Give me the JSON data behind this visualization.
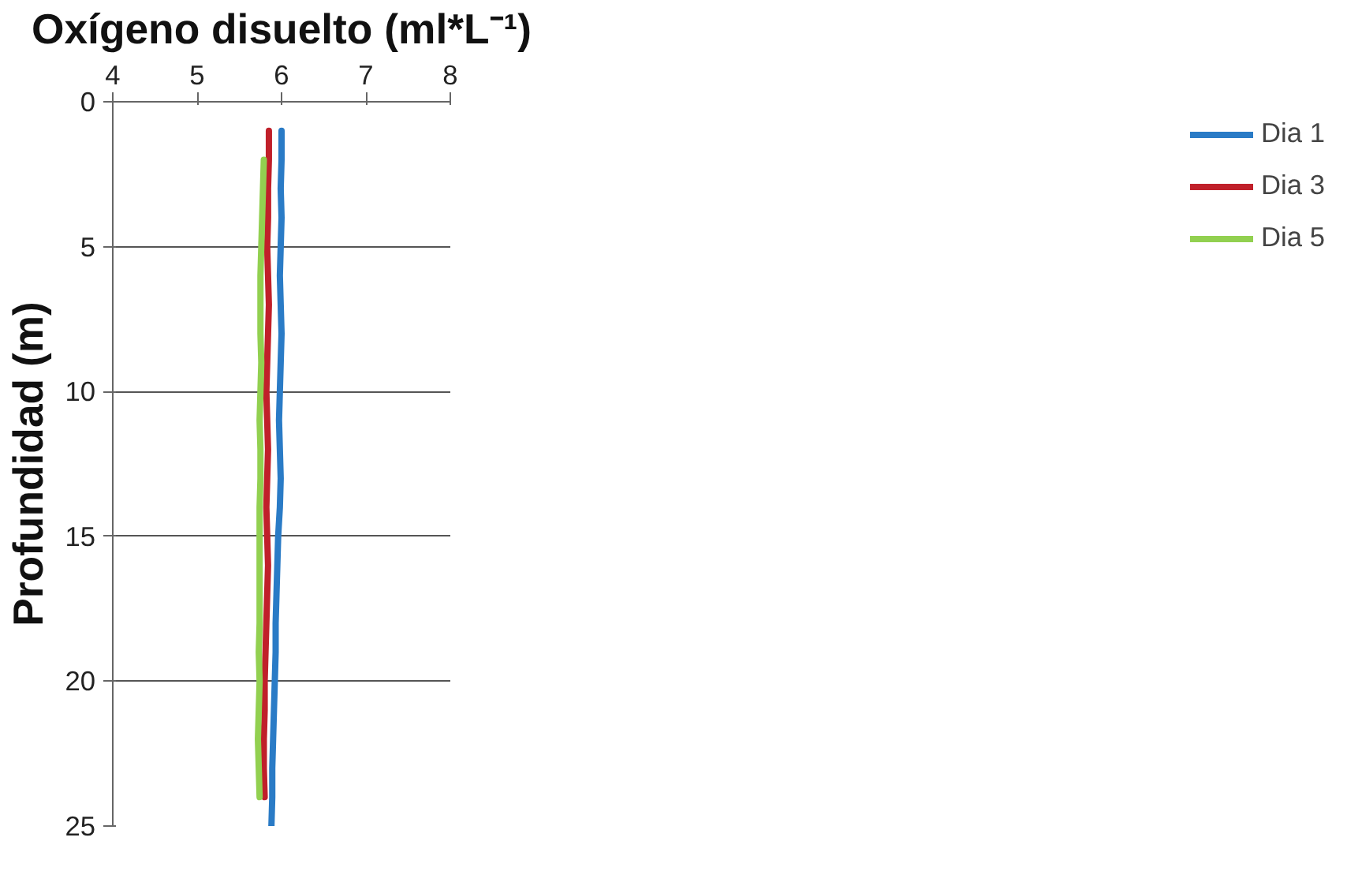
{
  "chart_data": {
    "type": "line",
    "xlabel": "Oxígeno disuelto (ml*L⁻¹)",
    "ylabel": "Profundidad (m)",
    "xlim": [
      4,
      8
    ],
    "xticks": [
      4,
      5,
      6,
      7,
      8
    ],
    "ylim": [
      25,
      0
    ],
    "yticks": [
      0,
      5,
      10,
      15,
      20,
      25
    ],
    "grid": "y",
    "legend": "right",
    "line_style": "solid",
    "marker": "none",
    "series": [
      {
        "name": "Dia 1",
        "color": "#2a7bc6",
        "x": [
          6.0,
          6.0,
          5.99,
          6.0,
          5.99,
          5.98,
          5.99,
          6.0,
          5.99,
          5.98,
          5.97,
          5.98,
          5.99,
          5.98,
          5.96,
          5.95,
          5.94,
          5.93,
          5.93,
          5.92,
          5.91,
          5.9,
          5.89,
          5.89,
          5.88
        ],
        "values": [
          1,
          2,
          3,
          4,
          5,
          6,
          7,
          8,
          9,
          10,
          11,
          12,
          13,
          14,
          15,
          16,
          17,
          18,
          19,
          20,
          21,
          22,
          23,
          24,
          25
        ]
      },
      {
        "name": "Dia 3",
        "color": "#c0202a",
        "x": [
          5.85,
          5.85,
          5.84,
          5.84,
          5.83,
          5.84,
          5.85,
          5.84,
          5.83,
          5.82,
          5.83,
          5.84,
          5.83,
          5.82,
          5.83,
          5.84,
          5.83,
          5.82,
          5.81,
          5.8,
          5.8,
          5.79,
          5.79,
          5.8
        ],
        "values": [
          1,
          2,
          3,
          4,
          5,
          6,
          7,
          8,
          9,
          10,
          11,
          12,
          13,
          14,
          15,
          16,
          17,
          18,
          19,
          20,
          21,
          22,
          23,
          24
        ]
      },
      {
        "name": "Dia 5",
        "color": "#92d050",
        "x": [
          5.79,
          5.78,
          5.77,
          5.76,
          5.75,
          5.75,
          5.75,
          5.76,
          5.75,
          5.74,
          5.75,
          5.75,
          5.74,
          5.74,
          5.74,
          5.74,
          5.74,
          5.73,
          5.74,
          5.73,
          5.72,
          5.73,
          5.74
        ],
        "values": [
          2,
          3,
          4,
          5,
          6,
          7,
          8,
          9,
          10,
          11,
          12,
          13,
          14,
          15,
          16,
          17,
          18,
          19,
          20,
          21,
          22,
          23,
          24
        ]
      }
    ]
  }
}
